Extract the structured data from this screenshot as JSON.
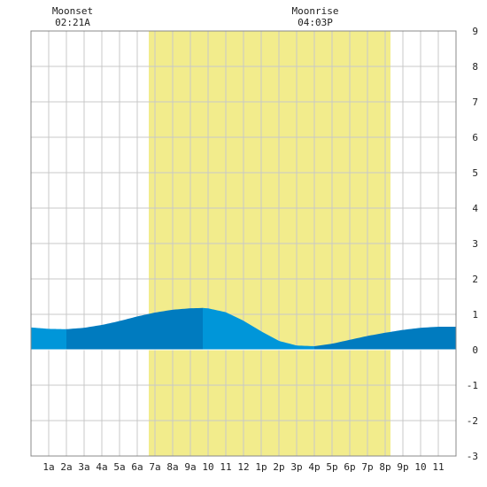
{
  "chart_data": {
    "type": "area",
    "x_domain": [
      0,
      24
    ],
    "ylim": [
      -3,
      9
    ],
    "y_ticks": [
      -3,
      -2,
      -1,
      0,
      1,
      2,
      3,
      4,
      5,
      6,
      7,
      8,
      9
    ],
    "x_tick_labels": [
      "1a",
      "2a",
      "3a",
      "4a",
      "5a",
      "6a",
      "7a",
      "8a",
      "9a",
      "10",
      "11",
      "12",
      "1p",
      "2p",
      "3p",
      "4p",
      "5p",
      "6p",
      "7p",
      "8p",
      "9p",
      "10",
      "11"
    ],
    "grid": true,
    "daylight": {
      "start": 6.65,
      "end": 20.3,
      "color": "#f2ec8c"
    },
    "annotations": [
      {
        "label": "Moonset",
        "time": "02:21A",
        "x": 2.35
      },
      {
        "label": "Moonrise",
        "time": "04:03P",
        "x": 16.05
      }
    ],
    "tide": {
      "x": [
        0,
        1,
        2,
        3,
        4,
        5,
        6,
        7,
        8,
        9,
        9.7,
        10,
        11,
        12,
        13,
        14,
        15,
        16,
        17,
        18,
        19,
        20,
        21,
        22,
        23,
        24
      ],
      "y": [
        0.63,
        0.59,
        0.58,
        0.62,
        0.7,
        0.81,
        0.94,
        1.05,
        1.13,
        1.17,
        1.18,
        1.17,
        1.06,
        0.82,
        0.52,
        0.25,
        0.12,
        0.1,
        0.17,
        0.28,
        0.39,
        0.48,
        0.56,
        0.62,
        0.65,
        0.65
      ],
      "segments": [
        {
          "from": 0,
          "to": 2,
          "color": "#0096d9"
        },
        {
          "from": 2,
          "to": 9.7,
          "color": "#007bbf"
        },
        {
          "from": 9.7,
          "to": 16,
          "color": "#0096d9"
        },
        {
          "from": 16,
          "to": 24,
          "color": "#007bbf"
        }
      ]
    },
    "colors": {
      "grid": "#c8c8c8",
      "frame": "#888888",
      "zero_line": "#ffffff"
    }
  }
}
